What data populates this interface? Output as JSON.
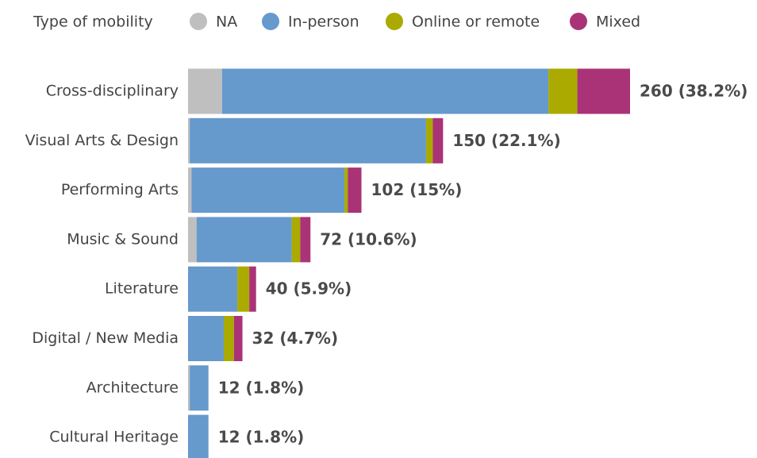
{
  "chart_data": {
    "type": "stacked_barh",
    "legend_title": "Type of mobility",
    "categories": [
      "Cross-disciplinary",
      "Visual Arts & Design",
      "Performing Arts",
      "Music & Sound",
      "Literature",
      "Digital / New Media",
      "Architecture",
      "Cultural Heritage"
    ],
    "series": [
      {
        "name": "NA",
        "color": "#bfbfbf",
        "values": [
          20,
          1,
          2,
          5,
          0,
          0,
          1,
          0
        ]
      },
      {
        "name": "In-person",
        "color": "#6699cc",
        "values": [
          192,
          139,
          90,
          56,
          29,
          21,
          11,
          12
        ]
      },
      {
        "name": "Online or remote",
        "color": "#aaaa00",
        "values": [
          17,
          4,
          2,
          5,
          7,
          6,
          0,
          0
        ]
      },
      {
        "name": "Mixed",
        "color": "#aa3377",
        "values": [
          31,
          6,
          8,
          6,
          4,
          5,
          0,
          0
        ]
      }
    ],
    "totals": [
      260,
      150,
      102,
      72,
      40,
      32,
      12,
      12
    ],
    "value_labels": [
      "260 (38.2%)",
      "150 (22.1%)",
      "102 (15%)",
      "72 (10.6%)",
      "40 (5.9%)",
      "32 (4.7%)",
      "12 (1.8%)",
      "12 (1.8%)"
    ],
    "xlim": [
      0,
      260
    ],
    "legend": "top"
  }
}
